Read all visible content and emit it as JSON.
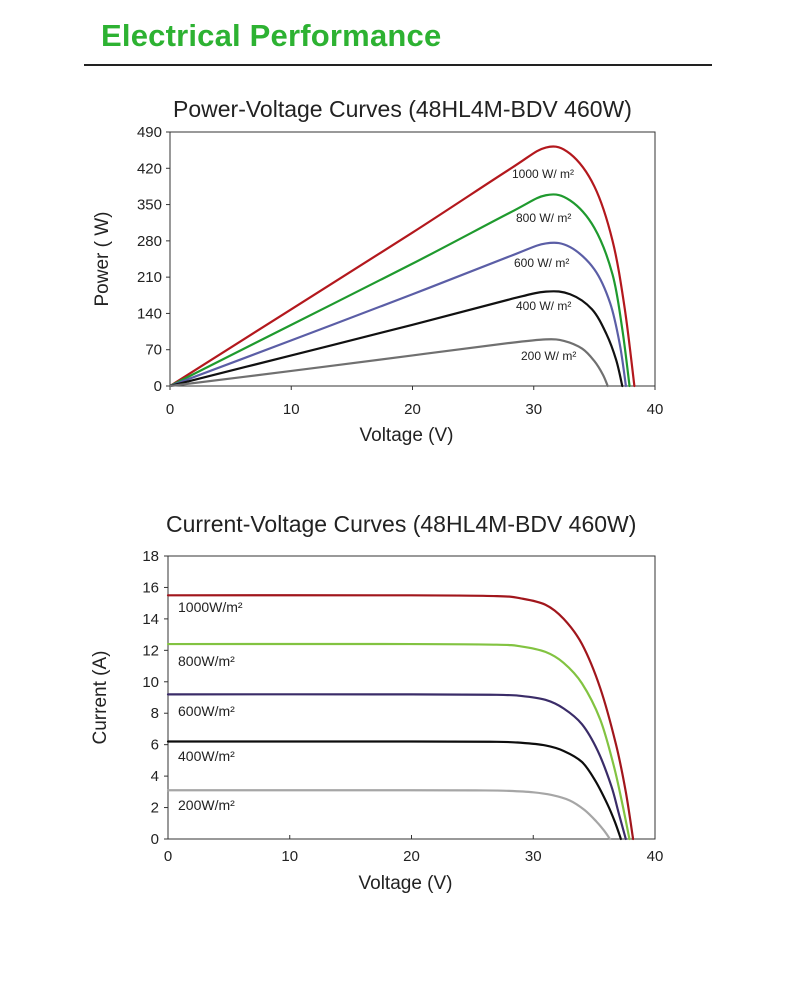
{
  "page": {
    "title": "Electrical Performance",
    "accent_color": "#2db232"
  },
  "chart_data": [
    {
      "type": "line",
      "title": "Power-Voltage Curves (48HL4M-BDV 460W)",
      "xlabel": "Voltage (V)",
      "ylabel": "Power ( W)",
      "xlim": [
        0,
        40
      ],
      "ylim": [
        0,
        490
      ],
      "xticks": [
        0,
        10,
        20,
        30,
        40
      ],
      "yticks": [
        0,
        70,
        140,
        210,
        280,
        350,
        420,
        490
      ],
      "grid": false,
      "series": [
        {
          "label": "1000 W/ m²",
          "color": "#b3181d",
          "x": [
            0,
            10,
            20,
            28,
            31,
            33,
            35,
            36.5,
            37.5,
            38.3
          ],
          "y": [
            0,
            148,
            296,
            418,
            460,
            448,
            385,
            280,
            150,
            0
          ]
        },
        {
          "label": "800 W/ m²",
          "color": "#1f9a2e",
          "x": [
            0,
            10,
            20,
            28,
            31,
            33,
            35,
            36.5,
            37.3,
            37.9
          ],
          "y": [
            0,
            118,
            236,
            334,
            368,
            358,
            305,
            215,
            110,
            0
          ]
        },
        {
          "label": "600 W/ m²",
          "color": "#5b5ea6",
          "x": [
            0,
            10,
            20,
            28,
            31,
            33,
            35,
            36.3,
            37.1,
            37.6
          ],
          "y": [
            0,
            88,
            177,
            250,
            275,
            268,
            225,
            160,
            80,
            0
          ]
        },
        {
          "label": "400 W/ m²",
          "color": "#111111",
          "x": [
            0,
            10,
            20,
            28,
            31,
            33,
            34.8,
            36,
            36.8,
            37.3
          ],
          "y": [
            0,
            59,
            118,
            167,
            182,
            177,
            148,
            100,
            50,
            0
          ]
        },
        {
          "label": "200 W/ m²",
          "color": "#707070",
          "x": [
            0,
            10,
            20,
            28,
            31,
            32.5,
            34,
            35,
            35.7,
            36.1
          ],
          "y": [
            0,
            29,
            59,
            83,
            90,
            87,
            72,
            48,
            22,
            0
          ]
        }
      ]
    },
    {
      "type": "line",
      "title": "Current-Voltage Curves (48HL4M-BDV 460W)",
      "xlabel": "Voltage (V)",
      "ylabel": "Current (A)",
      "xlim": [
        0,
        40
      ],
      "ylim": [
        0,
        18
      ],
      "xticks": [
        0,
        10,
        20,
        30,
        40
      ],
      "yticks": [
        0,
        2,
        4,
        6,
        8,
        10,
        12,
        14,
        16,
        18
      ],
      "grid": false,
      "series": [
        {
          "label": "1000W/m²",
          "color": "#a1161c",
          "x": [
            0,
            20,
            27,
            29,
            31,
            32.5,
            34,
            35.5,
            36.8,
            37.6,
            38.2
          ],
          "y": [
            15.5,
            15.5,
            15.45,
            15.3,
            14.9,
            14.0,
            12.4,
            9.6,
            6.0,
            3.0,
            0
          ]
        },
        {
          "label": "800W/m²",
          "color": "#82c341",
          "x": [
            0,
            20,
            27,
            29,
            31,
            32.5,
            34,
            35.5,
            36.6,
            37.3,
            37.9
          ],
          "y": [
            12.4,
            12.4,
            12.36,
            12.25,
            11.9,
            11.2,
            9.9,
            7.6,
            4.7,
            2.3,
            0
          ]
        },
        {
          "label": "600W/m²",
          "color": "#3a2c68",
          "x": [
            0,
            20,
            27,
            29,
            31,
            32.5,
            34,
            35.3,
            36.4,
            37.0,
            37.6
          ],
          "y": [
            9.2,
            9.2,
            9.17,
            9.1,
            8.85,
            8.3,
            7.3,
            5.6,
            3.4,
            1.7,
            0
          ]
        },
        {
          "label": "400W/m²",
          "color": "#0d0d0d",
          "x": [
            0,
            20,
            27,
            29,
            31,
            32.5,
            34,
            35.1,
            36.1,
            36.7,
            37.2
          ],
          "y": [
            6.2,
            6.2,
            6.18,
            6.12,
            5.95,
            5.6,
            4.9,
            3.7,
            2.2,
            1.1,
            0
          ]
        },
        {
          "label": "200W/m²",
          "color": "#a6a6a6",
          "x": [
            0,
            20,
            26,
            28,
            30,
            31.5,
            33,
            34.2,
            35.2,
            35.8,
            36.3
          ],
          "y": [
            3.1,
            3.1,
            3.09,
            3.06,
            2.97,
            2.8,
            2.45,
            1.85,
            1.1,
            0.55,
            0
          ]
        }
      ]
    }
  ]
}
